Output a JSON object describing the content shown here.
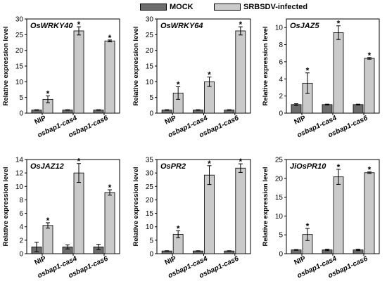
{
  "legend": [
    {
      "label": "MOCK",
      "color": "#6d6d6d"
    },
    {
      "label": "SRBSDV-infected",
      "color": "#cacaca"
    }
  ],
  "chart_data": [
    {
      "type": "bar",
      "title": "OsWRKY40",
      "ylabel": "Relative expression level",
      "categories": [
        "NIP",
        "osbap1-cas4",
        "osbap1-cas6"
      ],
      "ylim": [
        0,
        30
      ],
      "yticks": [
        0,
        5,
        10,
        15,
        20,
        25,
        30
      ],
      "series": [
        {
          "name": "MOCK",
          "values": [
            1,
            1,
            1
          ],
          "errors": [
            0.1,
            0.1,
            0.1
          ]
        },
        {
          "name": "SRBSDV-infected",
          "values": [
            4.4,
            26.2,
            23
          ],
          "errors": [
            1.1,
            1.3,
            0.3
          ]
        }
      ],
      "significance": [
        [
          false,
          true
        ],
        [
          false,
          true
        ],
        [
          false,
          true
        ]
      ],
      "significance_mark": "*"
    },
    {
      "type": "bar",
      "title": "OsWRKY64",
      "ylabel": "Relative expression level",
      "categories": [
        "NIP",
        "osbap1-cas4",
        "osbap1-cas6"
      ],
      "ylim": [
        0,
        30
      ],
      "yticks": [
        0,
        5,
        10,
        15,
        20,
        25,
        30
      ],
      "series": [
        {
          "name": "MOCK",
          "values": [
            1,
            1,
            1
          ],
          "errors": [
            0.1,
            0.1,
            0.1
          ]
        },
        {
          "name": "SRBSDV-infected",
          "values": [
            6.4,
            10,
            26.2
          ],
          "errors": [
            2,
            1.5,
            1.3
          ]
        }
      ],
      "significance": [
        [
          false,
          true
        ],
        [
          false,
          true
        ],
        [
          false,
          true
        ]
      ],
      "significance_mark": "*"
    },
    {
      "type": "bar",
      "title": "OsJAZ5",
      "ylabel": "Relative expression level",
      "categories": [
        "NIP",
        "osbap1-cas4",
        "osbap1-cas6"
      ],
      "ylim": [
        0,
        11
      ],
      "yticks": [
        0,
        2,
        4,
        6,
        8,
        10
      ],
      "series": [
        {
          "name": "MOCK",
          "values": [
            1,
            1,
            1
          ],
          "errors": [
            0.1,
            0.05,
            0.05
          ]
        },
        {
          "name": "SRBSDV-infected",
          "values": [
            3.5,
            9.4,
            6.4
          ],
          "errors": [
            1.2,
            0.8,
            0.1
          ]
        }
      ],
      "significance": [
        [
          false,
          true
        ],
        [
          false,
          true
        ],
        [
          false,
          true
        ]
      ],
      "significance_mark": "*"
    },
    {
      "type": "bar",
      "title": "OsJAZ12",
      "ylabel": "Relative expression level",
      "categories": [
        "NIP",
        "osbap1-cas4",
        "osbap1-cas6"
      ],
      "ylim": [
        0,
        14
      ],
      "yticks": [
        0,
        2,
        4,
        6,
        8,
        10,
        12,
        14
      ],
      "series": [
        {
          "name": "MOCK",
          "values": [
            1,
            1,
            1
          ],
          "errors": [
            0.7,
            0.3,
            0.4
          ]
        },
        {
          "name": "SRBSDV-infected",
          "values": [
            4.2,
            12,
            9.1
          ],
          "errors": [
            0.4,
            1.4,
            0.4
          ]
        }
      ],
      "significance": [
        [
          false,
          true
        ],
        [
          false,
          true
        ],
        [
          false,
          true
        ]
      ],
      "significance_mark": "*"
    },
    {
      "type": "bar",
      "title": "OsPR2",
      "ylabel": "Relative expression level",
      "categories": [
        "NIP",
        "osbap1-cas4",
        "osbap1-cas6"
      ],
      "ylim": [
        0,
        35
      ],
      "yticks": [
        0,
        5,
        10,
        15,
        20,
        25,
        30,
        35
      ],
      "series": [
        {
          "name": "MOCK",
          "values": [
            1,
            1,
            1
          ],
          "errors": [
            0.1,
            0.1,
            0.1
          ]
        },
        {
          "name": "SRBSDV-infected",
          "values": [
            7.2,
            29.2,
            31.8
          ],
          "errors": [
            1.3,
            3.5,
            1.6
          ]
        }
      ],
      "significance": [
        [
          false,
          true
        ],
        [
          false,
          true
        ],
        [
          false,
          true
        ]
      ],
      "significance_mark": "*"
    },
    {
      "type": "bar",
      "title": "JiOsPR10",
      "ylabel": "Relative expression level",
      "categories": [
        "NIP",
        "osbap1-cas4",
        "osbap1-cas6"
      ],
      "ylim": [
        0,
        25
      ],
      "yticks": [
        0,
        5,
        10,
        15,
        20,
        25
      ],
      "series": [
        {
          "name": "MOCK",
          "values": [
            1,
            1,
            1
          ],
          "errors": [
            0.1,
            0.2,
            0.2
          ]
        },
        {
          "name": "SRBSDV-infected",
          "values": [
            5.1,
            20.4,
            21.5
          ],
          "errors": [
            1.6,
            2,
            0.2
          ]
        }
      ],
      "significance": [
        [
          false,
          true
        ],
        [
          false,
          true
        ],
        [
          false,
          true
        ]
      ],
      "significance_mark": "*"
    }
  ]
}
